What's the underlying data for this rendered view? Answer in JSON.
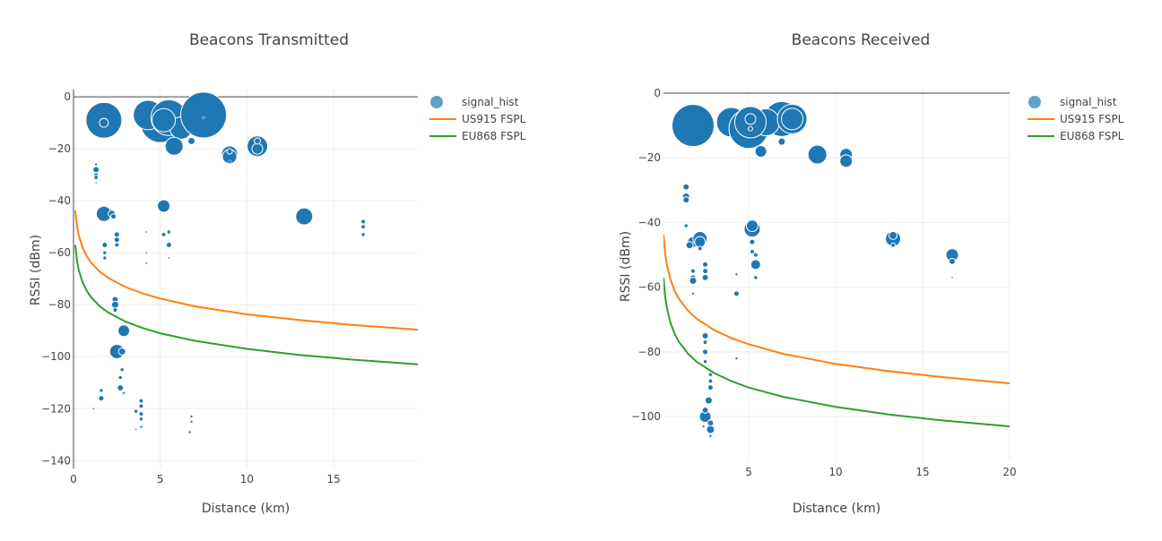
{
  "chart_data": [
    {
      "type": "scatter",
      "title": "Beacons Transmitted",
      "xlabel": "Distance (km)",
      "ylabel": "RSSI (dBm)",
      "xlim": [
        0,
        19.85
      ],
      "ylim": [
        -143,
        2.8
      ],
      "xticks": [
        0,
        5,
        10,
        15
      ],
      "yticks": [
        0,
        -20,
        -40,
        -60,
        -80,
        -100,
        -120,
        -140
      ],
      "grid": true,
      "legend_position": "right",
      "colors": {
        "signal_hist": "#1f77b4",
        "US915 FSPL": "#ff7f0e",
        "EU868 FSPL": "#2ca02c"
      },
      "series": [
        {
          "name": "signal_hist",
          "mode": "markers",
          "points": [
            [
              5.0,
              -10,
              484
            ],
            [
              4.3,
              -7,
              272
            ],
            [
              5.5,
              -8,
              400
            ],
            [
              6.2,
              -12,
              156
            ],
            [
              5.2,
              -9,
              169
            ],
            [
              7.5,
              -7,
              650
            ],
            [
              5.8,
              -19,
              100
            ],
            [
              6.8,
              -17,
              16
            ],
            [
              7.5,
              -8,
              2
            ],
            [
              1.75,
              -9,
              400
            ],
            [
              1.75,
              -10,
              25
            ],
            [
              9.0,
              -22,
              81
            ],
            [
              9.0,
              -23,
              64
            ],
            [
              9.0,
              -21,
              9
            ],
            [
              9.0,
              -25,
              4
            ],
            [
              10.6,
              -19,
              132
            ],
            [
              10.6,
              -20,
              36
            ],
            [
              10.6,
              -17,
              12
            ],
            [
              1.3,
              -28,
              12
            ],
            [
              1.3,
              -30,
              6
            ],
            [
              1.3,
              -31,
              6
            ],
            [
              1.3,
              -26,
              2
            ],
            [
              1.3,
              -33,
              1
            ],
            [
              1.75,
              -45,
              72
            ],
            [
              2.2,
              -45,
              16
            ],
            [
              2.3,
              -46,
              9
            ],
            [
              5.2,
              -42,
              49
            ],
            [
              13.3,
              -46,
              90
            ],
            [
              16.7,
              -48,
              6
            ],
            [
              16.7,
              -50,
              6
            ],
            [
              16.7,
              -53,
              4
            ],
            [
              2.5,
              -53,
              9
            ],
            [
              2.5,
              -55,
              9
            ],
            [
              2.5,
              -57,
              6
            ],
            [
              1.8,
              -57,
              9
            ],
            [
              1.8,
              -60,
              4
            ],
            [
              1.8,
              -62,
              4
            ],
            [
              4.2,
              -52,
              1
            ],
            [
              4.2,
              -60,
              1
            ],
            [
              4.2,
              -64,
              1
            ],
            [
              5.2,
              -53,
              6
            ],
            [
              5.5,
              -52,
              4
            ],
            [
              5.5,
              -57,
              9
            ],
            [
              5.5,
              -62,
              1
            ],
            [
              2.4,
              -78,
              12
            ],
            [
              2.4,
              -80,
              16
            ],
            [
              2.4,
              -82,
              6
            ],
            [
              2.9,
              -90,
              42
            ],
            [
              2.5,
              -98,
              64
            ],
            [
              2.8,
              -98,
              16
            ],
            [
              2.8,
              -105,
              4
            ],
            [
              2.7,
              -108,
              4
            ],
            [
              2.7,
              -112,
              12
            ],
            [
              2.9,
              -114,
              2
            ],
            [
              1.6,
              -116,
              9
            ],
            [
              1.6,
              -113,
              4
            ],
            [
              1.15,
              -120,
              1
            ],
            [
              3.6,
              -121,
              4
            ],
            [
              3.9,
              -117,
              6
            ],
            [
              3.9,
              -119,
              6
            ],
            [
              3.9,
              -122,
              6
            ],
            [
              3.9,
              -124,
              4
            ],
            [
              3.9,
              -127,
              2
            ],
            [
              3.6,
              -128,
              1
            ],
            [
              6.8,
              -123,
              2
            ],
            [
              6.8,
              -125,
              2
            ],
            [
              6.7,
              -129,
              2
            ]
          ]
        },
        {
          "name": "US915 FSPL",
          "mode": "lines",
          "x": [
            0.1,
            0.2,
            0.3,
            0.5,
            0.75,
            1,
            1.5,
            2,
            3,
            4,
            5,
            7,
            10,
            13,
            16,
            20
          ],
          "y": [
            -43.7,
            -49.7,
            -53.2,
            -57.6,
            -61.2,
            -63.7,
            -67.2,
            -69.7,
            -73.2,
            -75.7,
            -77.6,
            -80.6,
            -83.7,
            -85.9,
            -87.7,
            -89.7
          ]
        },
        {
          "name": "EU868 FSPL",
          "mode": "lines",
          "x": [
            0.1,
            0.2,
            0.3,
            0.5,
            0.75,
            1,
            1.5,
            2,
            3,
            4,
            5,
            7,
            10,
            13,
            16,
            20
          ],
          "y": [
            -57.0,
            -63.0,
            -66.5,
            -71.0,
            -74.5,
            -77.0,
            -80.5,
            -83.0,
            -86.5,
            -89.0,
            -91.0,
            -93.9,
            -97.0,
            -99.3,
            -101.1,
            -103.0
          ]
        }
      ]
    },
    {
      "type": "scatter",
      "title": "Beacons Received",
      "xlabel": "Distance (km)",
      "ylabel": "RSSI (dBm)",
      "xlim": [
        0.1,
        20
      ],
      "ylim": [
        -113.8,
        1.1
      ],
      "xticks": [
        5,
        10,
        15,
        20
      ],
      "yticks": [
        0,
        -20,
        -40,
        -60,
        -80,
        -100
      ],
      "grid": true,
      "legend_position": "right",
      "colors": {
        "signal_hist": "#1f77b4",
        "US915 FSPL": "#ff7f0e",
        "EU868 FSPL": "#2ca02c"
      },
      "series": [
        {
          "name": "signal_hist",
          "mode": "markers",
          "points": [
            [
              1.8,
              -10,
              552
            ],
            [
              4.0,
              -9,
              272
            ],
            [
              5.0,
              -11,
              484
            ],
            [
              6.9,
              -8,
              380
            ],
            [
              6.0,
              -9,
              225
            ],
            [
              5.1,
              -9,
              306
            ],
            [
              7.5,
              -8,
              272
            ],
            [
              7.5,
              -8,
              144
            ],
            [
              5.1,
              -8,
              36
            ],
            [
              5.1,
              -11,
              6
            ],
            [
              5.7,
              -18,
              42
            ],
            [
              6.9,
              -15,
              16
            ],
            [
              8.95,
              -19,
              110
            ],
            [
              10.6,
              -19,
              49
            ],
            [
              10.6,
              -21,
              49
            ],
            [
              1.4,
              -29,
              12
            ],
            [
              1.4,
              -32,
              16
            ],
            [
              1.4,
              -33,
              12
            ],
            [
              1.4,
              -41,
              4
            ],
            [
              1.8,
              -46,
              36
            ],
            [
              1.6,
              -47,
              16
            ],
            [
              2.2,
              -45,
              64
            ],
            [
              2.2,
              -46,
              36
            ],
            [
              2.2,
              -48,
              6
            ],
            [
              5.2,
              -42,
              81
            ],
            [
              5.2,
              -41,
              42
            ],
            [
              5.2,
              -46,
              9
            ],
            [
              5.2,
              -49,
              6
            ],
            [
              5.4,
              -50,
              6
            ],
            [
              5.4,
              -53,
              30
            ],
            [
              5.4,
              -57,
              4
            ],
            [
              4.3,
              -56,
              2
            ],
            [
              4.3,
              -62,
              9
            ],
            [
              4.3,
              -82,
              2
            ],
            [
              13.3,
              -45,
              72
            ],
            [
              13.3,
              -44,
              20
            ],
            [
              13.3,
              -47,
              6
            ],
            [
              16.7,
              -50,
              49
            ],
            [
              16.7,
              -52,
              12
            ],
            [
              16.7,
              -57,
              1
            ],
            [
              1.8,
              -55,
              6
            ],
            [
              1.8,
              -57,
              9
            ],
            [
              1.8,
              -58,
              16
            ],
            [
              1.8,
              -62,
              2
            ],
            [
              2.5,
              -53,
              9
            ],
            [
              2.5,
              -55,
              9
            ],
            [
              2.5,
              -57,
              12
            ],
            [
              2.5,
              -75,
              12
            ],
            [
              2.5,
              -77,
              6
            ],
            [
              2.5,
              -80,
              9
            ],
            [
              2.5,
              -83,
              4
            ],
            [
              2.8,
              -87,
              4
            ],
            [
              2.8,
              -89,
              6
            ],
            [
              2.8,
              -91,
              9
            ],
            [
              2.7,
              -95,
              16
            ],
            [
              2.5,
              -100,
              42
            ],
            [
              2.5,
              -98,
              12
            ],
            [
              2.8,
              -102,
              12
            ],
            [
              2.8,
              -104,
              20
            ],
            [
              2.4,
              -103,
              2
            ],
            [
              2.8,
              -106,
              2
            ]
          ]
        },
        {
          "name": "US915 FSPL",
          "mode": "lines",
          "x": [
            0.1,
            0.2,
            0.3,
            0.5,
            0.75,
            1,
            1.5,
            2,
            3,
            4,
            5,
            7,
            10,
            13,
            16,
            20
          ],
          "y": [
            -43.7,
            -49.7,
            -53.2,
            -57.6,
            -61.2,
            -63.7,
            -67.2,
            -69.7,
            -73.2,
            -75.7,
            -77.6,
            -80.6,
            -83.7,
            -85.9,
            -87.7,
            -89.7
          ]
        },
        {
          "name": "EU868 FSPL",
          "mode": "lines",
          "x": [
            0.1,
            0.2,
            0.3,
            0.5,
            0.75,
            1,
            1.5,
            2,
            3,
            4,
            5,
            7,
            10,
            13,
            16,
            20
          ],
          "y": [
            -57.0,
            -63.0,
            -66.5,
            -71.0,
            -74.5,
            -77.0,
            -80.5,
            -83.0,
            -86.5,
            -89.0,
            -91.0,
            -93.9,
            -97.0,
            -99.3,
            -101.1,
            -103.0
          ]
        }
      ]
    }
  ]
}
